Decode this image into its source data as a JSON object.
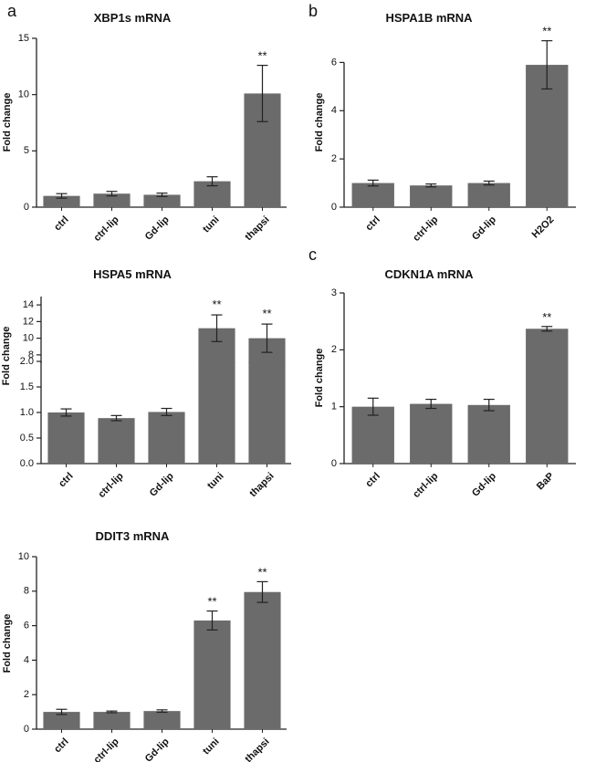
{
  "colors": {
    "bar": "#6b6b6b",
    "axis": "#222222",
    "error": "#222222",
    "text": "#111111",
    "background": "#ffffff"
  },
  "chart_data": [
    {
      "id": "xbp1s",
      "panel_letter": "a",
      "type": "bar",
      "title": "XBP1s mRNA",
      "ylabel": "Fold change",
      "xlabel": "",
      "ylim": [
        0,
        15
      ],
      "yticks": [
        0,
        5,
        10,
        15
      ],
      "categories": [
        "ctrl",
        "ctrl-lip",
        "Gd-lip",
        "tuni",
        "thapsi"
      ],
      "values": [
        1.0,
        1.2,
        1.1,
        2.3,
        10.1
      ],
      "errors": [
        0.2,
        0.2,
        0.15,
        0.4,
        2.5
      ],
      "significance": [
        "",
        "",
        "",
        "",
        "**"
      ]
    },
    {
      "id": "hspa1b",
      "panel_letter": "b",
      "type": "bar",
      "title": "HSPA1B mRNA",
      "ylabel": "Fold change",
      "xlabel": "",
      "ylim": [
        0,
        7
      ],
      "yticks": [
        0,
        2,
        4,
        6
      ],
      "categories": [
        "ctrl",
        "ctrl-lip",
        "Gd-lip",
        "H2O2"
      ],
      "values": [
        1.0,
        0.9,
        1.0,
        5.9
      ],
      "errors": [
        0.12,
        0.06,
        0.08,
        1.0
      ],
      "significance": [
        "",
        "",
        "",
        "**"
      ]
    },
    {
      "id": "hspa5",
      "panel_letter": "",
      "type": "bar",
      "title": "HSPA5 mRNA",
      "ylabel": "Fold change",
      "xlabel": "",
      "axis_break": {
        "lower_ylim": [
          0,
          2.0
        ],
        "lower_ticks": [
          "0.0",
          "0.5",
          "1.0",
          "1.5",
          "2.0"
        ],
        "upper_ylim": [
          7,
          15
        ],
        "upper_ticks": [
          "8",
          "10",
          "12",
          "14"
        ]
      },
      "categories": [
        "ctrl",
        "ctrl-lip",
        "Gd-lip",
        "tuni",
        "thapsi"
      ],
      "values": [
        1.0,
        0.89,
        1.01,
        11.2,
        10.0
      ],
      "errors": [
        0.07,
        0.05,
        0.07,
        1.6,
        1.7
      ],
      "significance": [
        "",
        "",
        "",
        "**",
        "**"
      ]
    },
    {
      "id": "cdkn1a",
      "panel_letter": "c",
      "type": "bar",
      "title": "CDKN1A mRNA",
      "ylabel": "Fold change",
      "xlabel": "",
      "ylim": [
        0,
        3
      ],
      "yticks": [
        0,
        1,
        2,
        3
      ],
      "categories": [
        "ctrl",
        "ctrl-lip",
        "Gd-lip",
        "BaP"
      ],
      "values": [
        1.0,
        1.05,
        1.03,
        2.37
      ],
      "errors": [
        0.15,
        0.08,
        0.1,
        0.04
      ],
      "significance": [
        "",
        "",
        "",
        "**"
      ]
    },
    {
      "id": "ddit3",
      "panel_letter": "",
      "type": "bar",
      "title": "DDIT3 mRNA",
      "ylabel": "Fold change",
      "xlabel": "",
      "ylim": [
        0,
        10
      ],
      "yticks": [
        0,
        2,
        4,
        6,
        8,
        10
      ],
      "categories": [
        "ctrl",
        "ctrl-lip",
        "Gd-lip",
        "tuni",
        "thapsi"
      ],
      "values": [
        1.0,
        1.0,
        1.05,
        6.3,
        7.95
      ],
      "errors": [
        0.15,
        0.05,
        0.07,
        0.55,
        0.6
      ],
      "significance": [
        "",
        "",
        "",
        "**",
        "**"
      ]
    }
  ]
}
